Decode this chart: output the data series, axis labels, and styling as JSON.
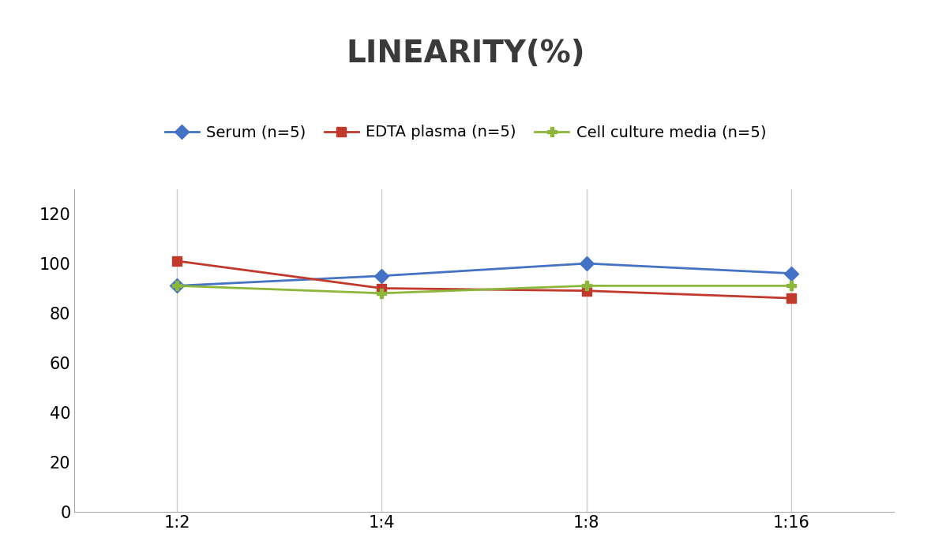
{
  "title": "LINEARITY(%)",
  "x_labels": [
    "1:2",
    "1:4",
    "1:8",
    "1:16"
  ],
  "x_positions": [
    0,
    1,
    2,
    3
  ],
  "series": [
    {
      "label": "Serum (n=5)",
      "color": "#4472C4",
      "marker": "D",
      "markersize": 9,
      "values": [
        91,
        95,
        100,
        96
      ]
    },
    {
      "label": "EDTA plasma (n=5)",
      "color": "#C0392B",
      "marker": "s",
      "markersize": 9,
      "values": [
        101,
        90,
        89,
        86
      ]
    },
    {
      "label": "Cell culture media (n=5)",
      "color": "#8DB63C",
      "marker": "P",
      "markersize": 9,
      "values": [
        91,
        88,
        91,
        91
      ]
    }
  ],
  "ylim": [
    0,
    130
  ],
  "yticks": [
    0,
    20,
    40,
    60,
    80,
    100,
    120
  ],
  "background_color": "#FFFFFF",
  "title_fontsize": 28,
  "legend_fontsize": 14,
  "tick_fontsize": 15,
  "grid_color": "#CCCCCC",
  "spine_color": "#AAAAAA"
}
